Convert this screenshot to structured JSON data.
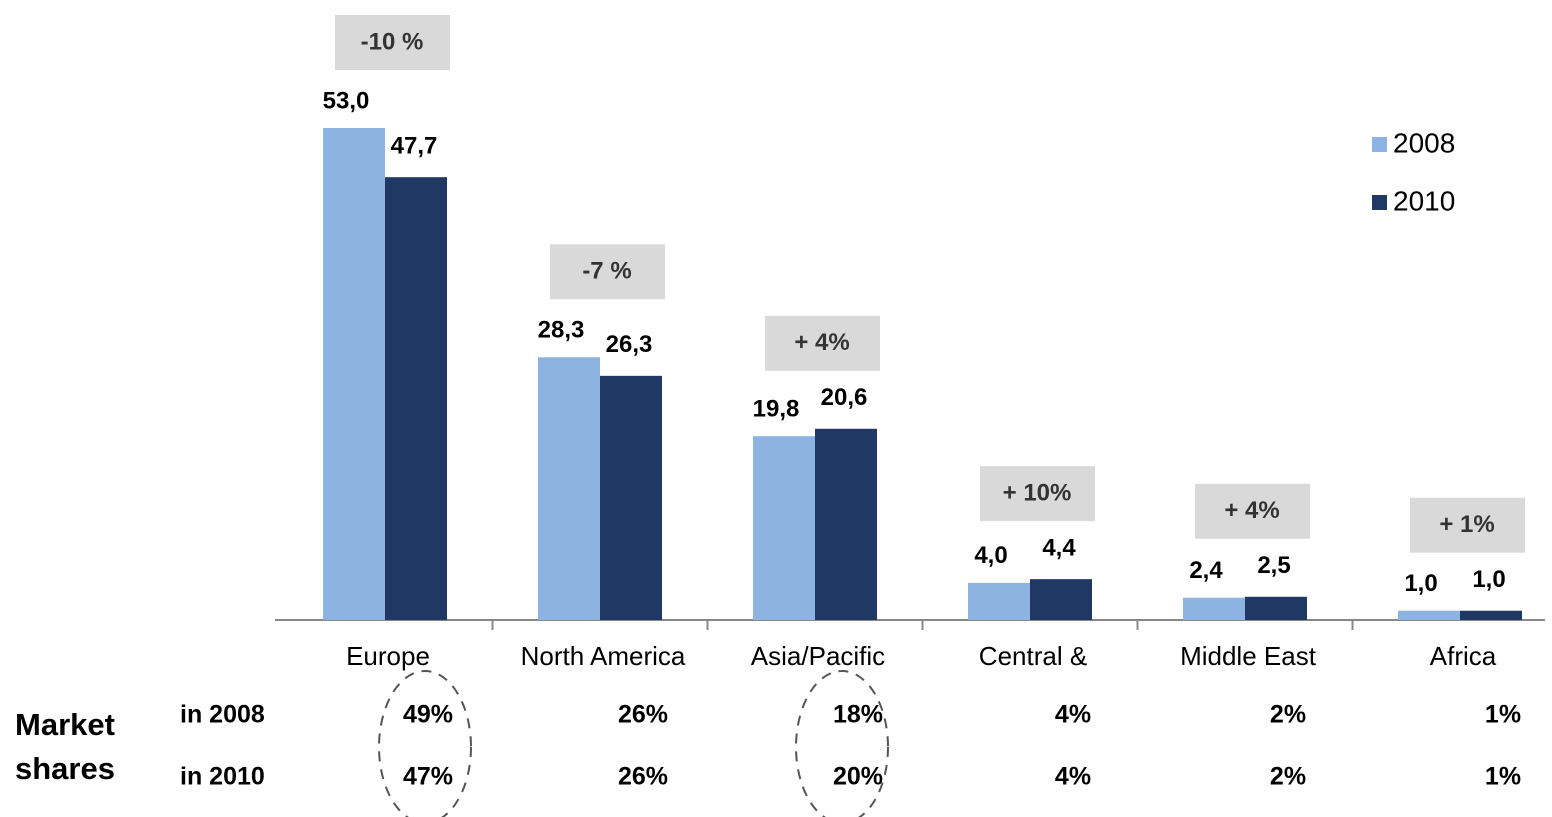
{
  "chart_data": {
    "type": "bar",
    "categories": [
      "Europe",
      "North America",
      "Asia/Pacific",
      "Central &",
      "Middle East",
      "Africa"
    ],
    "series": [
      {
        "name": "2008",
        "color": "#8db3e2",
        "values": [
          53.0,
          28.3,
          19.8,
          4.0,
          2.4,
          1.0
        ],
        "value_labels": [
          "53,0",
          "28,3",
          "19,8",
          "4,0",
          "2,4",
          "1,0"
        ]
      },
      {
        "name": "2010",
        "color": "#1f3864",
        "values": [
          47.7,
          26.3,
          20.6,
          4.4,
          2.5,
          1.0
        ],
        "value_labels": [
          "47,7",
          "26,3",
          "20,6",
          "4,4",
          "2,5",
          "1,0"
        ]
      }
    ],
    "changes": [
      "-10 %",
      "-7 %",
      "+ 4%",
      "+ 10%",
      "+ 4%",
      "+ 1%"
    ],
    "market_shares": {
      "label": "Market shares",
      "rows": [
        {
          "label": "in 2008",
          "values": [
            "49%",
            "26%",
            "18%",
            "4%",
            "2%",
            "1%"
          ]
        },
        {
          "label": "in 2010",
          "values": [
            "47%",
            "26%",
            "20%",
            "4%",
            "2%",
            "1%"
          ]
        }
      ]
    }
  }
}
